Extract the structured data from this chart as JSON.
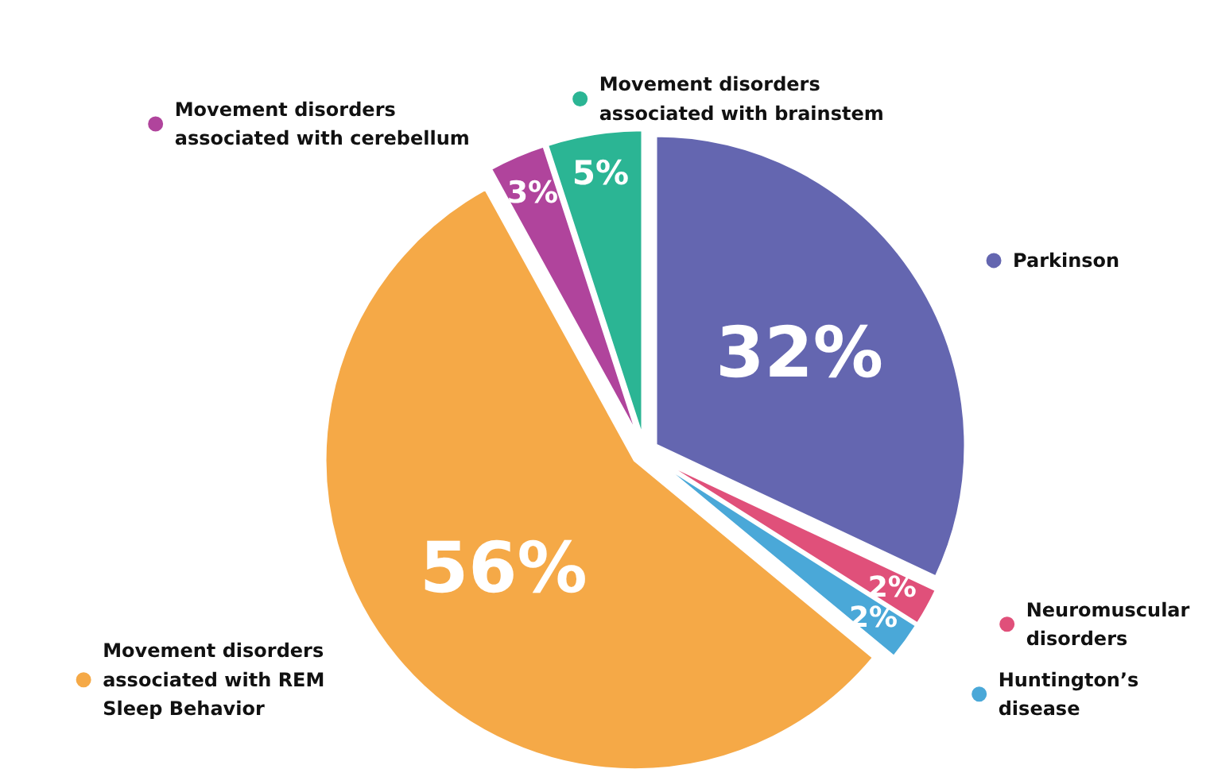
{
  "chart_data": {
    "type": "pie",
    "categories": [
      "Parkinson",
      "Neuromuscular disorders",
      "Huntington’s disease",
      "Movement disorders associated with REM Sleep Behavior",
      "Movement disorders associated with cerebellum",
      "Movement disorders associated with brainstem"
    ],
    "values": [
      32,
      2,
      2,
      56,
      3,
      5
    ],
    "colors": [
      "#6466b0",
      "#e0507a",
      "#4aa8d8",
      "#f5a947",
      "#b0449c",
      "#2bb594"
    ],
    "value_labels": [
      "32%",
      "2%",
      "2%",
      "56%",
      "3%",
      "5%"
    ],
    "legend": "right"
  }
}
